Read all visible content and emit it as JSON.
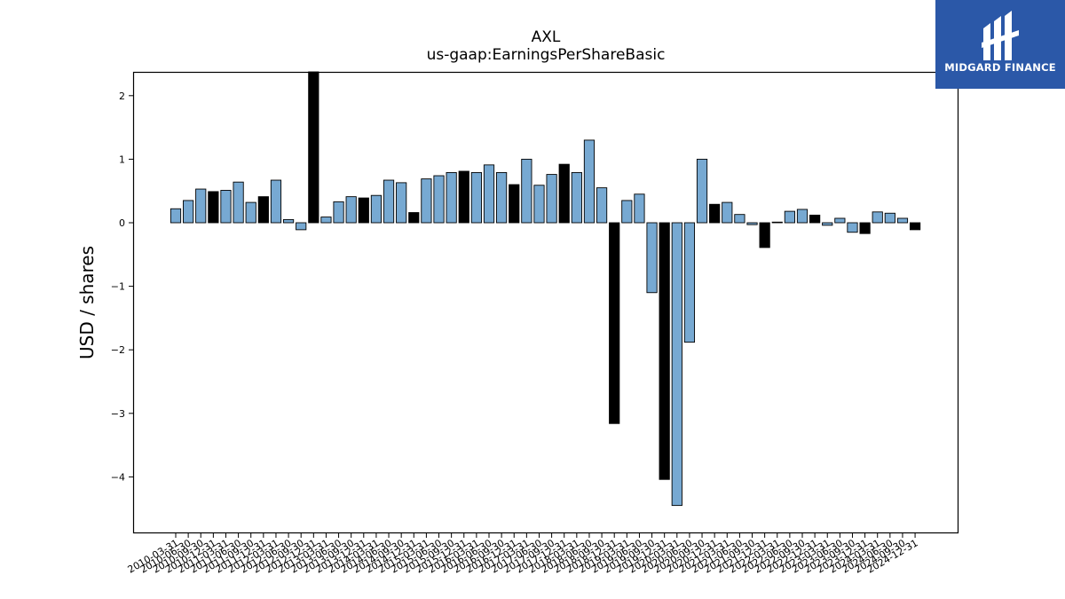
{
  "chart_data": {
    "type": "bar",
    "title": "AXL",
    "subtitle": "us-gaap:EarningsPerShareBasic",
    "xlabel": "",
    "ylabel": "USD / shares",
    "ylim": [
      -4.88,
      2.38
    ],
    "yticks": [
      2,
      1,
      0,
      -1,
      -2,
      -3,
      -4
    ],
    "ytick_labels": [
      "2",
      "1",
      "0",
      "−1",
      "−2",
      "−3",
      "−4"
    ],
    "grid": false,
    "legend": "none",
    "bar_colors": {
      "quarterly": "#77a9d2",
      "fiscal_year": "#000000",
      "edge": "#000000"
    },
    "categories": [
      "2010-03-31",
      "2010-06-30",
      "2010-09-30",
      "2010-12-31",
      "2011-03-31",
      "2011-06-30",
      "2011-09-30",
      "2011-12-31",
      "2012-03-31",
      "2012-06-30",
      "2012-09-30",
      "2012-12-31",
      "2013-03-31",
      "2013-06-30",
      "2013-09-30",
      "2013-12-31",
      "2014-03-31",
      "2014-06-30",
      "2014-09-30",
      "2014-12-31",
      "2015-03-31",
      "2015-06-30",
      "2015-09-30",
      "2015-12-31",
      "2016-03-31",
      "2016-06-30",
      "2016-09-30",
      "2016-12-31",
      "2017-03-31",
      "2017-06-30",
      "2017-09-30",
      "2017-12-31",
      "2018-03-31",
      "2018-06-30",
      "2018-09-30",
      "2018-12-31",
      "2019-03-31",
      "2019-06-30",
      "2019-09-30",
      "2019-12-31",
      "2020-03-31",
      "2020-06-30",
      "2020-09-30",
      "2020-12-31",
      "2021-03-31",
      "2021-06-30",
      "2021-09-30",
      "2021-12-31",
      "2022-03-31",
      "2022-06-30",
      "2022-09-30",
      "2022-12-31",
      "2023-03-31",
      "2023-06-30",
      "2023-09-30",
      "2023-12-31",
      "2024-03-31",
      "2024-06-30",
      "2024-09-30",
      "2024-12-31"
    ],
    "values": [
      0.22,
      0.35,
      0.53,
      0.49,
      0.51,
      0.64,
      0.32,
      0.41,
      0.67,
      0.05,
      -0.11,
      2.4,
      0.09,
      0.33,
      0.41,
      0.39,
      0.43,
      0.67,
      0.63,
      0.16,
      0.69,
      0.74,
      0.79,
      0.81,
      0.79,
      0.91,
      0.79,
      0.6,
      1.0,
      0.59,
      0.76,
      0.92,
      0.79,
      1.3,
      0.55,
      -3.16,
      0.35,
      0.45,
      -1.1,
      -4.04,
      -4.45,
      -1.88,
      1.0,
      0.29,
      0.32,
      0.13,
      -0.03,
      -0.39,
      0.01,
      0.18,
      0.21,
      0.12,
      -0.04,
      0.07,
      -0.15,
      -0.17,
      0.17,
      0.15,
      0.07,
      -0.11
    ],
    "bar_types": [
      "q",
      "q",
      "q",
      "fy",
      "q",
      "q",
      "q",
      "fy",
      "q",
      "q",
      "q",
      "fy",
      "q",
      "q",
      "q",
      "fy",
      "q",
      "q",
      "q",
      "fy",
      "q",
      "q",
      "q",
      "fy",
      "q",
      "q",
      "q",
      "fy",
      "q",
      "q",
      "q",
      "fy",
      "q",
      "q",
      "q",
      "fy",
      "q",
      "q",
      "q",
      "fy",
      "q",
      "q",
      "q",
      "fy",
      "q",
      "q",
      "q",
      "fy",
      "q",
      "q",
      "q",
      "fy",
      "q",
      "q",
      "q",
      "fy",
      "q",
      "q",
      "q",
      "fy"
    ]
  },
  "logo": {
    "brand": "MIDGARD FINANCE",
    "icon": "midgard-logo-icon"
  }
}
